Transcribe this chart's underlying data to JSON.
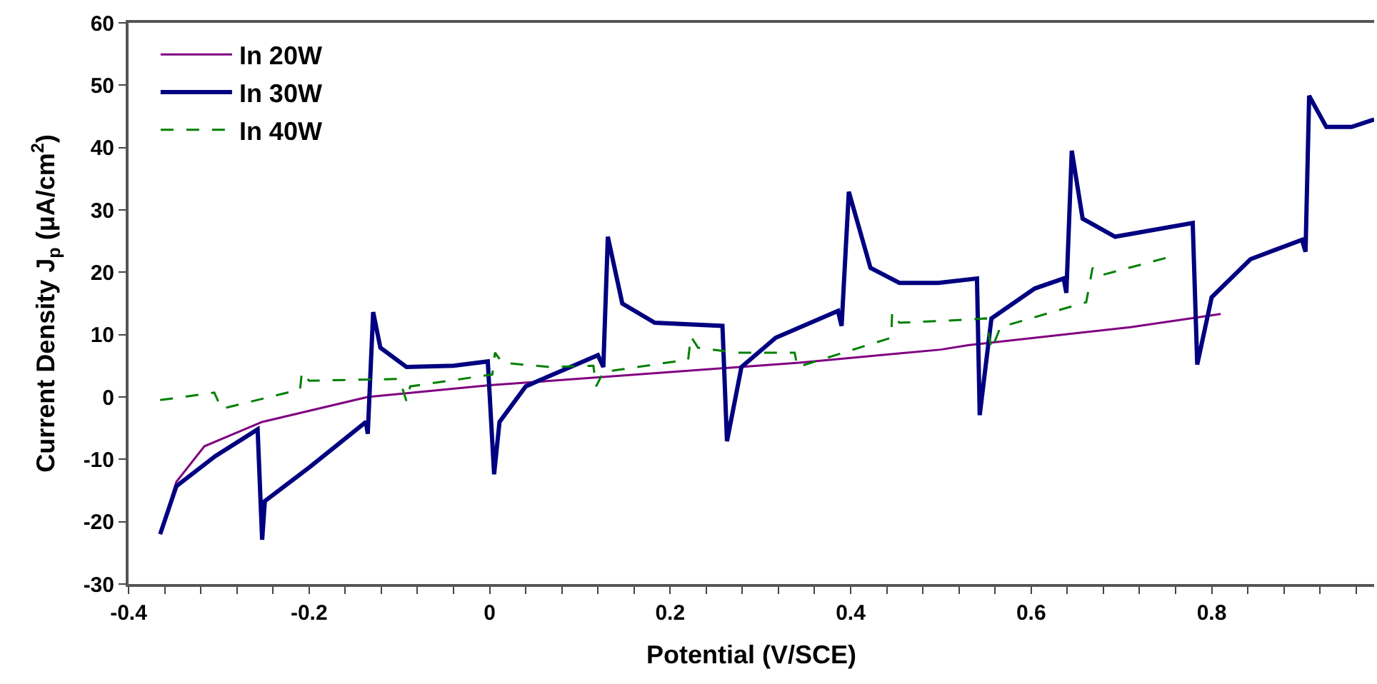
{
  "chart_data": {
    "type": "line",
    "xlabel": "Potential (V/SCE)",
    "ylabel": "Current Density J$_{p}$ (μA/cm$^{2}$)",
    "xlim": [
      -0.4,
      0.98
    ],
    "ylim": [
      -30,
      60
    ],
    "xticks": [
      -0.4,
      {
        "value": -0.36,
        "label": null
      },
      {
        "value": -0.32,
        "label": null
      },
      {
        "value": -0.28,
        "label": null
      },
      {
        "value": -0.24,
        "label": null
      },
      -0.2,
      {
        "value": -0.16,
        "label": null
      },
      {
        "value": -0.12,
        "label": null
      },
      {
        "value": -0.08,
        "label": null
      },
      {
        "value": -0.04,
        "label": null
      },
      0,
      {
        "value": 0.04,
        "label": null
      },
      {
        "value": 0.08,
        "label": null
      },
      {
        "value": 0.12,
        "label": null
      },
      {
        "value": 0.16,
        "label": null
      },
      0.2,
      {
        "value": 0.24,
        "label": null
      },
      {
        "value": 0.28,
        "label": null
      },
      {
        "value": 0.32,
        "label": null
      },
      {
        "value": 0.36,
        "label": null
      },
      0.4,
      {
        "value": 0.44,
        "label": null
      },
      {
        "value": 0.48,
        "label": null
      },
      {
        "value": 0.52,
        "label": null
      },
      {
        "value": 0.56,
        "label": null
      },
      0.6,
      {
        "value": 0.64,
        "label": null
      },
      {
        "value": 0.68,
        "label": null
      },
      {
        "value": 0.72,
        "label": null
      },
      {
        "value": 0.76,
        "label": null
      },
      0.8,
      {
        "value": 0.84,
        "label": null
      },
      {
        "value": 0.88,
        "label": null
      },
      {
        "value": 0.92,
        "label": null
      },
      {
        "value": 0.96,
        "label": null
      }
    ],
    "yticks": [
      -30,
      -20,
      -10,
      0,
      10,
      20,
      30,
      40,
      50,
      60
    ],
    "grid": false,
    "legend": "top left",
    "marker": "none",
    "series": [
      {
        "name": "In 20W",
        "color": "#800080",
        "line_style": "solid",
        "x": [
          -0.365,
          -0.347,
          -0.316,
          -0.252,
          -0.135,
          0.0,
          0.05,
          0.343,
          0.5,
          0.53,
          0.71,
          0.81
        ],
        "values": [
          -22,
          -13.6,
          -7.9,
          -4,
          0,
          1.9,
          2.4,
          5.5,
          7.6,
          8.3,
          11.2,
          13.3
        ]
      },
      {
        "name": "In 30W",
        "color": "#000080",
        "line_style": "solid",
        "x": [
          -0.365,
          -0.347,
          -0.304,
          -0.257,
          -0.252,
          -0.249,
          -0.199,
          -0.137,
          -0.135,
          -0.129,
          -0.121,
          -0.092,
          -0.04,
          -0.002,
          0.005,
          0.011,
          0.04,
          0.051,
          0.12,
          0.126,
          0.131,
          0.147,
          0.183,
          0.258,
          0.263,
          0.279,
          0.317,
          0.386,
          0.39,
          0.398,
          0.422,
          0.454,
          0.497,
          0.54,
          0.543,
          0.556,
          0.604,
          0.636,
          0.639,
          0.645,
          0.657,
          0.693,
          0.779,
          0.784,
          0.8,
          0.843,
          0.9,
          0.904,
          0.908,
          0.927,
          0.955,
          0.98
        ],
        "values": [
          -22,
          -14.3,
          -9.5,
          -5.2,
          -22.9,
          -16.7,
          -11.2,
          -4,
          -5.9,
          13.6,
          7.9,
          4.8,
          5,
          5.7,
          -12.4,
          -4,
          1.7,
          2.4,
          6.7,
          4.8,
          25.7,
          15,
          11.9,
          11.4,
          -7.1,
          4.8,
          9.5,
          13.8,
          11.4,
          32.9,
          20.7,
          18.3,
          18.3,
          19,
          -2.9,
          12.6,
          17.4,
          19,
          16.7,
          39.5,
          28.6,
          25.7,
          27.9,
          5.2,
          16,
          22.1,
          25.2,
          23.3,
          48.3,
          43.3,
          43.3,
          44.5
        ]
      },
      {
        "name": "In 40W",
        "color": "#008000",
        "line_style": "dashed",
        "x": [
          -0.365,
          -0.305,
          -0.297,
          -0.21,
          -0.208,
          -0.2,
          -0.1,
          -0.092,
          -0.088,
          0.003,
          0.006,
          0.014,
          0.067,
          0.115,
          0.118,
          0.126,
          0.22,
          0.223,
          0.231,
          0.274,
          0.338,
          0.341,
          0.445,
          0.446,
          0.454,
          0.53,
          0.55,
          0.556,
          0.566,
          0.661,
          0.668,
          0.677,
          0.752
        ],
        "values": [
          -0.5,
          0.7,
          -1.9,
          1.2,
          4,
          2.6,
          2.9,
          -0.7,
          1.7,
          3.6,
          7.1,
          5.5,
          4.8,
          5,
          1.7,
          4,
          6,
          9.7,
          7.9,
          7.1,
          7.1,
          4.8,
          9.5,
          13.6,
          11.9,
          12.4,
          12.6,
          7.6,
          11.2,
          15.2,
          20.7,
          19.5,
          22.4
        ]
      }
    ]
  }
}
